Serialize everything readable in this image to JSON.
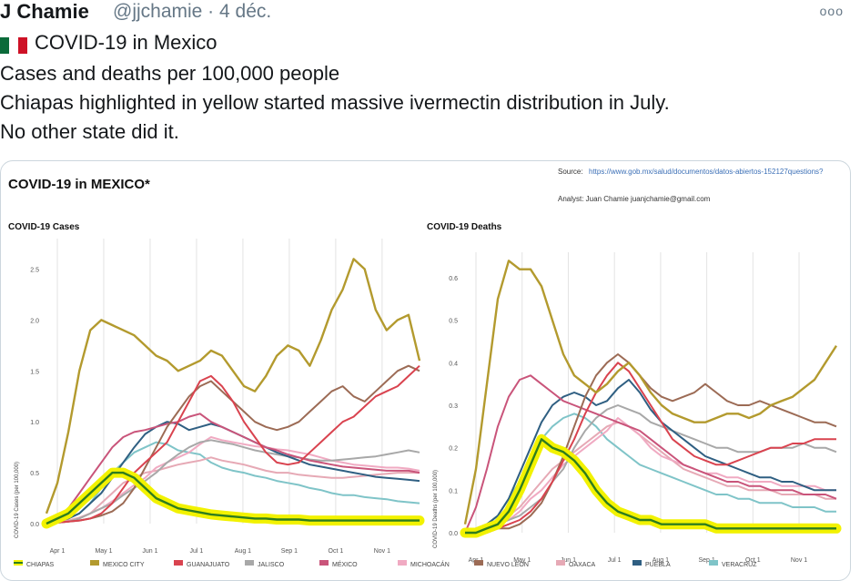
{
  "tweet": {
    "author": "J Chamie",
    "handle": "@jjchamie · 4 déc.",
    "more_label": "ooo",
    "lines": [
      "COVID-19 in Mexico",
      "Cases and deaths per 100,000 people",
      "Chiapas highlighted in yellow started massive ivermectin distribution in July.",
      "No other state did it."
    ]
  },
  "image": {
    "title": "COVID-19 in MEXICO*",
    "source_label": "Source:",
    "source_url": "https://www.gob.mx/salud/documentos/datos-abiertos-152127questions?",
    "analyst": "Analyst: Juan Chamie juanjchamie@gmail.com",
    "panels": [
      {
        "title": "COVID-19 Cases",
        "ylabel": "COVID-19 Cases (per 100,000)"
      },
      {
        "title": "COVID-19 Deaths",
        "ylabel": "COVID-19 Deaths (per 100,000)"
      }
    ],
    "legend": [
      "CHIAPAS",
      "MEXICO CITY",
      "GUANAJUATO",
      "JALISCO",
      "MÉXICO",
      "MICHOACÁN",
      "NUEVO LEÓN",
      "OAXACA",
      "PUEBLA",
      "VERACRUZ"
    ]
  },
  "colors": {
    "CHIAPAS": "#2e7d1e",
    "CHIAPAS_HL": "#f2f200",
    "MEXICO CITY": "#b39a2e",
    "GUANAJUATO": "#d9434f",
    "JALISCO": "#a8a8a8",
    "MÉXICO": "#c9547a",
    "MICHOACÁN": "#f0aac2",
    "NUEVO LEÓN": "#9c6b55",
    "OAXACA": "#e6a9b5",
    "PUEBLA": "#2f5f82",
    "VERACRUZ": "#7fc4c8"
  },
  "chart_data": [
    {
      "type": "line",
      "title": "COVID-19 Cases",
      "ylabel": "COVID-19 Cases (per 100,000)",
      "ylim": [
        0,
        2.8
      ],
      "yticks": [
        0.0,
        0.5,
        1.0,
        1.5,
        2.0,
        2.5
      ],
      "xticks": [
        "Apr 1",
        "May 1",
        "Jun 1",
        "Jul 1",
        "Aug 1",
        "Sep 1",
        "Oct 1",
        "Nov 1"
      ],
      "t": [
        0,
        1,
        2,
        3,
        4,
        5,
        6,
        7,
        8,
        9,
        10,
        11,
        12,
        13,
        14,
        15,
        16,
        17,
        18,
        19,
        20,
        21,
        22,
        23,
        24,
        25,
        26,
        27,
        28,
        29,
        30,
        31,
        32,
        33,
        34
      ],
      "series": [
        {
          "name": "VERACRUZ",
          "values": [
            0,
            0.02,
            0.05,
            0.1,
            0.2,
            0.35,
            0.5,
            0.6,
            0.7,
            0.75,
            0.8,
            0.78,
            0.72,
            0.7,
            0.68,
            0.6,
            0.55,
            0.52,
            0.5,
            0.47,
            0.45,
            0.42,
            0.4,
            0.38,
            0.35,
            0.33,
            0.3,
            0.28,
            0.28,
            0.26,
            0.25,
            0.24,
            0.22,
            0.21,
            0.2
          ]
        },
        {
          "name": "OAXACA",
          "values": [
            0,
            0.01,
            0.03,
            0.06,
            0.1,
            0.2,
            0.3,
            0.4,
            0.45,
            0.5,
            0.52,
            0.55,
            0.58,
            0.6,
            0.62,
            0.65,
            0.62,
            0.6,
            0.58,
            0.55,
            0.52,
            0.5,
            0.5,
            0.48,
            0.47,
            0.46,
            0.45,
            0.45,
            0.46,
            0.47,
            0.48,
            0.49,
            0.5,
            0.5,
            0.5
          ]
        },
        {
          "name": "MICHOACÁN",
          "values": [
            0,
            0.01,
            0.02,
            0.05,
            0.1,
            0.15,
            0.22,
            0.3,
            0.38,
            0.45,
            0.55,
            0.6,
            0.65,
            0.7,
            0.78,
            0.85,
            0.82,
            0.8,
            0.78,
            0.76,
            0.75,
            0.73,
            0.72,
            0.7,
            0.68,
            0.65,
            0.62,
            0.6,
            0.58,
            0.57,
            0.56,
            0.55,
            0.55,
            0.54,
            0.52
          ]
        },
        {
          "name": "JALISCO",
          "values": [
            0,
            0.01,
            0.02,
            0.05,
            0.1,
            0.15,
            0.2,
            0.28,
            0.35,
            0.42,
            0.5,
            0.6,
            0.68,
            0.75,
            0.8,
            0.82,
            0.8,
            0.78,
            0.75,
            0.72,
            0.7,
            0.68,
            0.66,
            0.65,
            0.63,
            0.62,
            0.62,
            0.63,
            0.64,
            0.65,
            0.66,
            0.68,
            0.7,
            0.72,
            0.7
          ]
        },
        {
          "name": "PUEBLA",
          "values": [
            0,
            0.02,
            0.05,
            0.1,
            0.2,
            0.3,
            0.45,
            0.6,
            0.75,
            0.88,
            0.95,
            1.0,
            0.98,
            0.92,
            0.95,
            0.98,
            0.95,
            0.9,
            0.85,
            0.8,
            0.75,
            0.7,
            0.66,
            0.62,
            0.58,
            0.56,
            0.54,
            0.52,
            0.5,
            0.48,
            0.46,
            0.45,
            0.44,
            0.43,
            0.42
          ]
        },
        {
          "name": "MÉXICO",
          "values": [
            0,
            0.05,
            0.15,
            0.3,
            0.45,
            0.6,
            0.75,
            0.85,
            0.9,
            0.92,
            0.95,
            0.98,
            1.0,
            1.05,
            1.08,
            1.0,
            0.95,
            0.9,
            0.85,
            0.8,
            0.75,
            0.72,
            0.68,
            0.65,
            0.62,
            0.6,
            0.58,
            0.56,
            0.55,
            0.54,
            0.53,
            0.52,
            0.52,
            0.52,
            0.5
          ]
        },
        {
          "name": "NUEVO LEÓN",
          "values": [
            0,
            0.01,
            0.02,
            0.03,
            0.05,
            0.08,
            0.12,
            0.2,
            0.35,
            0.55,
            0.75,
            0.95,
            1.1,
            1.25,
            1.35,
            1.4,
            1.3,
            1.2,
            1.1,
            1.0,
            0.95,
            0.92,
            0.95,
            1.0,
            1.1,
            1.2,
            1.3,
            1.35,
            1.25,
            1.2,
            1.3,
            1.4,
            1.5,
            1.55,
            1.5
          ]
        },
        {
          "name": "GUANAJUATO",
          "values": [
            0,
            0.01,
            0.02,
            0.03,
            0.05,
            0.1,
            0.2,
            0.35,
            0.5,
            0.6,
            0.7,
            0.8,
            1.0,
            1.2,
            1.4,
            1.45,
            1.35,
            1.2,
            1.0,
            0.85,
            0.7,
            0.6,
            0.58,
            0.6,
            0.7,
            0.8,
            0.9,
            1.0,
            1.05,
            1.15,
            1.25,
            1.3,
            1.35,
            1.45,
            1.55
          ]
        },
        {
          "name": "MEXICO CITY",
          "values": [
            0.1,
            0.4,
            0.9,
            1.5,
            1.9,
            2.0,
            1.95,
            1.9,
            1.85,
            1.75,
            1.65,
            1.6,
            1.5,
            1.55,
            1.6,
            1.7,
            1.65,
            1.5,
            1.35,
            1.3,
            1.45,
            1.65,
            1.75,
            1.7,
            1.55,
            1.8,
            2.1,
            2.3,
            2.6,
            2.5,
            2.1,
            1.9,
            2.0,
            2.05,
            1.6
          ]
        },
        {
          "name": "CHIAPAS",
          "values": [
            0,
            0.05,
            0.1,
            0.2,
            0.3,
            0.4,
            0.5,
            0.5,
            0.45,
            0.35,
            0.25,
            0.2,
            0.15,
            0.13,
            0.11,
            0.09,
            0.08,
            0.07,
            0.06,
            0.05,
            0.05,
            0.04,
            0.04,
            0.04,
            0.03,
            0.03,
            0.03,
            0.03,
            0.03,
            0.03,
            0.03,
            0.03,
            0.03,
            0.03,
            0.03
          ]
        }
      ]
    },
    {
      "type": "line",
      "title": "COVID-19 Deaths",
      "ylabel": "COVID-19 Deaths (per 100,000)",
      "ylim": [
        0,
        0.66
      ],
      "yticks": [
        0.0,
        0.1,
        0.2,
        0.3,
        0.4,
        0.5,
        0.6
      ],
      "xticks": [
        "Apr 1",
        "May 1",
        "Jun 1",
        "Jul 1",
        "Aug 1",
        "Sep 1",
        "Oct 1",
        "Nov 1"
      ],
      "t": [
        0,
        1,
        2,
        3,
        4,
        5,
        6,
        7,
        8,
        9,
        10,
        11,
        12,
        13,
        14,
        15,
        16,
        17,
        18,
        19,
        20,
        21,
        22,
        23,
        24,
        25,
        26,
        27,
        28,
        29,
        30,
        31,
        32,
        33,
        34
      ],
      "series": [
        {
          "name": "VERACRUZ",
          "values": [
            0,
            0.01,
            0.02,
            0.04,
            0.08,
            0.12,
            0.18,
            0.22,
            0.25,
            0.27,
            0.28,
            0.27,
            0.25,
            0.22,
            0.2,
            0.18,
            0.16,
            0.15,
            0.14,
            0.13,
            0.12,
            0.11,
            0.1,
            0.09,
            0.09,
            0.08,
            0.08,
            0.07,
            0.07,
            0.07,
            0.06,
            0.06,
            0.06,
            0.05,
            0.05
          ]
        },
        {
          "name": "OAXACA",
          "values": [
            0,
            0.01,
            0.01,
            0.02,
            0.04,
            0.06,
            0.09,
            0.12,
            0.15,
            0.17,
            0.19,
            0.21,
            0.23,
            0.25,
            0.26,
            0.25,
            0.23,
            0.21,
            0.19,
            0.17,
            0.15,
            0.14,
            0.13,
            0.12,
            0.11,
            0.11,
            0.1,
            0.1,
            0.1,
            0.09,
            0.09,
            0.09,
            0.09,
            0.08,
            0.08
          ]
        },
        {
          "name": "MICHOACÁN",
          "values": [
            0,
            0.0,
            0.01,
            0.02,
            0.03,
            0.05,
            0.08,
            0.1,
            0.13,
            0.16,
            0.18,
            0.2,
            0.22,
            0.24,
            0.27,
            0.25,
            0.23,
            0.2,
            0.18,
            0.17,
            0.16,
            0.15,
            0.14,
            0.14,
            0.13,
            0.13,
            0.12,
            0.12,
            0.12,
            0.11,
            0.11,
            0.11,
            0.11,
            0.1,
            0.1
          ]
        },
        {
          "name": "JALISCO",
          "values": [
            0,
            0.0,
            0.01,
            0.02,
            0.03,
            0.04,
            0.06,
            0.08,
            0.12,
            0.15,
            0.2,
            0.24,
            0.27,
            0.29,
            0.3,
            0.29,
            0.28,
            0.26,
            0.25,
            0.24,
            0.23,
            0.22,
            0.21,
            0.2,
            0.2,
            0.19,
            0.19,
            0.19,
            0.2,
            0.2,
            0.2,
            0.21,
            0.2,
            0.2,
            0.19
          ]
        },
        {
          "name": "PUEBLA",
          "values": [
            0,
            0.01,
            0.02,
            0.04,
            0.08,
            0.14,
            0.2,
            0.26,
            0.3,
            0.32,
            0.33,
            0.32,
            0.3,
            0.31,
            0.34,
            0.36,
            0.33,
            0.29,
            0.26,
            0.24,
            0.22,
            0.2,
            0.18,
            0.17,
            0.16,
            0.15,
            0.14,
            0.13,
            0.13,
            0.12,
            0.12,
            0.11,
            0.1,
            0.1,
            0.1
          ]
        },
        {
          "name": "MÉXICO",
          "values": [
            0,
            0.06,
            0.15,
            0.25,
            0.32,
            0.36,
            0.37,
            0.35,
            0.33,
            0.31,
            0.3,
            0.29,
            0.28,
            0.27,
            0.26,
            0.25,
            0.24,
            0.22,
            0.2,
            0.18,
            0.16,
            0.15,
            0.14,
            0.13,
            0.12,
            0.12,
            0.11,
            0.11,
            0.1,
            0.1,
            0.1,
            0.09,
            0.09,
            0.09,
            0.08
          ]
        },
        {
          "name": "NUEVO LEÓN",
          "values": [
            0,
            0.0,
            0.0,
            0.01,
            0.01,
            0.02,
            0.04,
            0.07,
            0.12,
            0.18,
            0.25,
            0.32,
            0.37,
            0.4,
            0.42,
            0.4,
            0.37,
            0.34,
            0.32,
            0.31,
            0.32,
            0.33,
            0.35,
            0.33,
            0.31,
            0.3,
            0.3,
            0.31,
            0.3,
            0.29,
            0.28,
            0.27,
            0.26,
            0.26,
            0.25
          ]
        },
        {
          "name": "GUANAJUATO",
          "values": [
            0,
            0.0,
            0.0,
            0.01,
            0.02,
            0.03,
            0.05,
            0.08,
            0.12,
            0.17,
            0.22,
            0.28,
            0.33,
            0.37,
            0.4,
            0.38,
            0.34,
            0.3,
            0.26,
            0.22,
            0.2,
            0.18,
            0.17,
            0.16,
            0.16,
            0.17,
            0.18,
            0.19,
            0.2,
            0.2,
            0.21,
            0.21,
            0.22,
            0.22,
            0.22
          ]
        },
        {
          "name": "MEXICO CITY",
          "values": [
            0.02,
            0.15,
            0.35,
            0.55,
            0.64,
            0.62,
            0.62,
            0.58,
            0.5,
            0.42,
            0.37,
            0.35,
            0.33,
            0.35,
            0.38,
            0.4,
            0.37,
            0.33,
            0.3,
            0.28,
            0.27,
            0.26,
            0.26,
            0.27,
            0.28,
            0.28,
            0.27,
            0.28,
            0.3,
            0.31,
            0.32,
            0.34,
            0.36,
            0.4,
            0.44
          ]
        },
        {
          "name": "CHIAPAS",
          "values": [
            0,
            0.0,
            0.01,
            0.02,
            0.05,
            0.1,
            0.16,
            0.22,
            0.2,
            0.19,
            0.17,
            0.14,
            0.1,
            0.07,
            0.05,
            0.04,
            0.03,
            0.03,
            0.02,
            0.02,
            0.02,
            0.02,
            0.02,
            0.01,
            0.01,
            0.01,
            0.01,
            0.01,
            0.01,
            0.01,
            0.01,
            0.01,
            0.01,
            0.01,
            0.01
          ]
        }
      ]
    }
  ]
}
